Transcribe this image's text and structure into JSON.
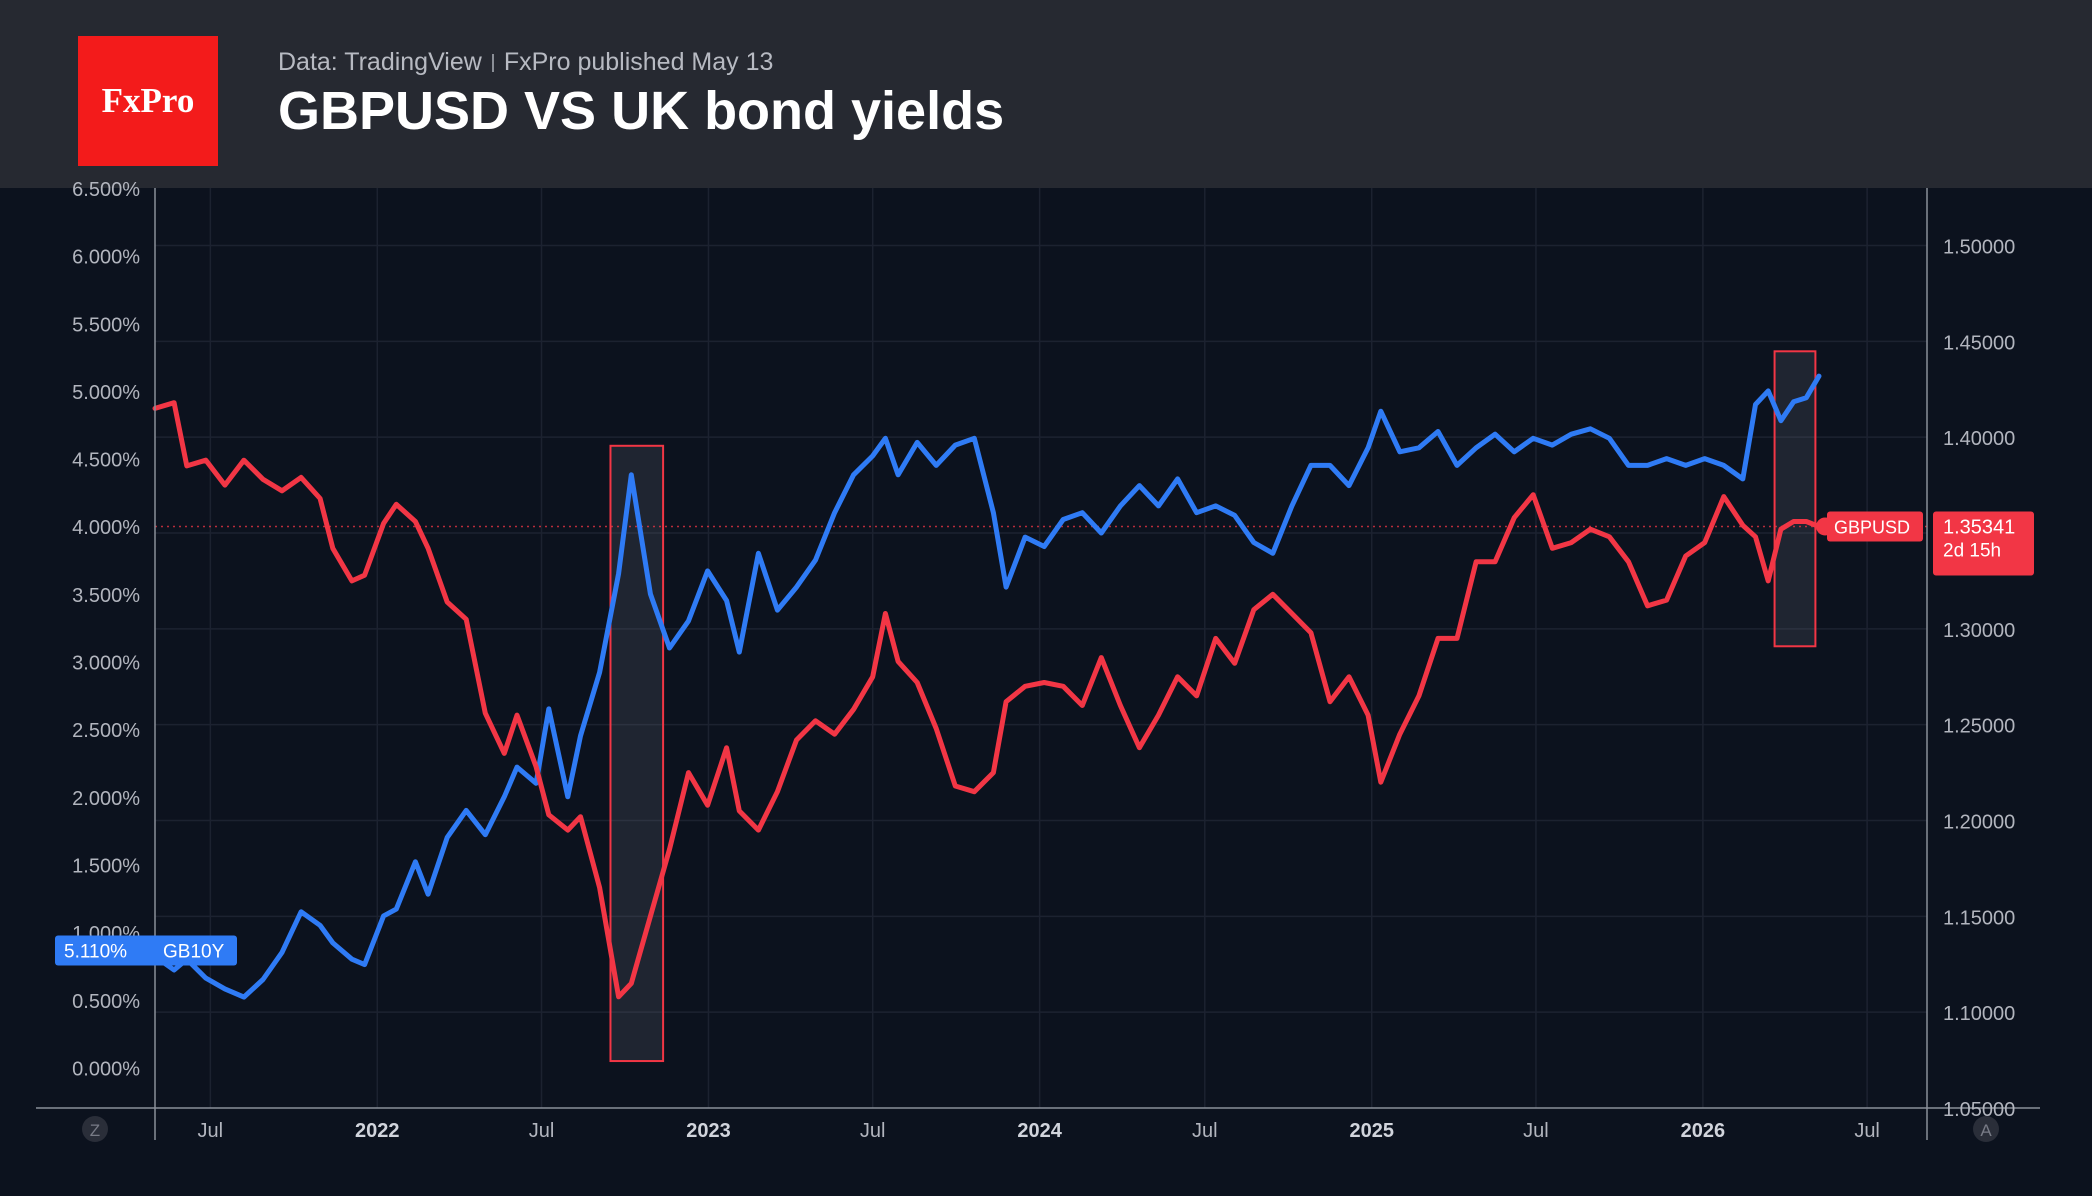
{
  "header": {
    "logo_text": "FxPro",
    "source": "Data: TradingView",
    "published": "FxPro published May 13",
    "title": "GBPUSD VS UK bond yields"
  },
  "colors": {
    "gbpusd": "#f23645",
    "gb10y": "#2f7bf5",
    "header_bg": "#262931",
    "chart_bg": "#0c121e",
    "logo_bg": "#f31b1b"
  },
  "chart_data": {
    "type": "line",
    "title": "GBPUSD VS UK bond yields",
    "x_axis_labels": [
      "Jul",
      "2022",
      "Jul",
      "2023",
      "Jul",
      "2024",
      "Jul",
      "2025",
      "Jul",
      "2026",
      "Jul"
    ],
    "left_axis": {
      "ticks": [
        "6.500%",
        "6.000%",
        "5.500%",
        "5.000%",
        "4.500%",
        "4.000%",
        "3.500%",
        "3.000%",
        "2.500%",
        "2.000%",
        "1.500%",
        "1.000%",
        "0.500%",
        "0.000%"
      ],
      "range": [
        -0.3,
        6.5
      ]
    },
    "right_axis": {
      "ticks": [
        "1.50000",
        "1.45000",
        "1.40000",
        "1.35000",
        "1.30000",
        "1.25000",
        "1.20000",
        "1.15000",
        "1.10000",
        "1.05000"
      ],
      "range": [
        1.05,
        1.53
      ]
    },
    "x_range": [
      "2021-05-01",
      "2026-09-05"
    ],
    "series": [
      {
        "name": "GB10Y",
        "axis": "left",
        "last_value_label": "5.110%",
        "points": [
          [
            "2021-05-01",
            0.82
          ],
          [
            "2021-05-22",
            0.72
          ],
          [
            "2021-06-05",
            0.8
          ],
          [
            "2021-06-26",
            0.66
          ],
          [
            "2021-07-17",
            0.58
          ],
          [
            "2021-08-07",
            0.52
          ],
          [
            "2021-08-28",
            0.65
          ],
          [
            "2021-09-18",
            0.85
          ],
          [
            "2021-10-09",
            1.15
          ],
          [
            "2021-10-30",
            1.05
          ],
          [
            "2021-11-13",
            0.92
          ],
          [
            "2021-12-04",
            0.8
          ],
          [
            "2021-12-18",
            0.76
          ],
          [
            "2022-01-08",
            1.12
          ],
          [
            "2022-01-22",
            1.17
          ],
          [
            "2022-02-12",
            1.52
          ],
          [
            "2022-02-26",
            1.28
          ],
          [
            "2022-03-19",
            1.7
          ],
          [
            "2022-04-09",
            1.9
          ],
          [
            "2022-04-30",
            1.72
          ],
          [
            "2022-05-21",
            2.0
          ],
          [
            "2022-06-04",
            2.22
          ],
          [
            "2022-06-25",
            2.1
          ],
          [
            "2022-07-09",
            2.65
          ],
          [
            "2022-07-30",
            2.0
          ],
          [
            "2022-08-13",
            2.45
          ],
          [
            "2022-09-03",
            2.92
          ],
          [
            "2022-09-24",
            3.65
          ],
          [
            "2022-10-08",
            4.38
          ],
          [
            "2022-10-29",
            3.5
          ],
          [
            "2022-11-19",
            3.1
          ],
          [
            "2022-12-10",
            3.3
          ],
          [
            "2022-12-31",
            3.67
          ],
          [
            "2023-01-21",
            3.45
          ],
          [
            "2023-02-04",
            3.07
          ],
          [
            "2023-02-25",
            3.8
          ],
          [
            "2023-03-18",
            3.38
          ],
          [
            "2023-04-08",
            3.55
          ],
          [
            "2023-04-29",
            3.75
          ],
          [
            "2023-05-20",
            4.1
          ],
          [
            "2023-06-10",
            4.38
          ],
          [
            "2023-07-01",
            4.52
          ],
          [
            "2023-07-15",
            4.65
          ],
          [
            "2023-07-29",
            4.38
          ],
          [
            "2023-08-19",
            4.62
          ],
          [
            "2023-09-09",
            4.45
          ],
          [
            "2023-09-30",
            4.6
          ],
          [
            "2023-10-21",
            4.65
          ],
          [
            "2023-11-11",
            4.1
          ],
          [
            "2023-11-25",
            3.55
          ],
          [
            "2023-12-16",
            3.92
          ],
          [
            "2024-01-06",
            3.85
          ],
          [
            "2024-01-27",
            4.05
          ],
          [
            "2024-02-17",
            4.1
          ],
          [
            "2024-03-09",
            3.95
          ],
          [
            "2024-03-30",
            4.15
          ],
          [
            "2024-04-20",
            4.3
          ],
          [
            "2024-05-11",
            4.15
          ],
          [
            "2024-06-01",
            4.35
          ],
          [
            "2024-06-22",
            4.1
          ],
          [
            "2024-07-13",
            4.15
          ],
          [
            "2024-08-03",
            4.08
          ],
          [
            "2024-08-24",
            3.88
          ],
          [
            "2024-09-14",
            3.8
          ],
          [
            "2024-10-05",
            4.15
          ],
          [
            "2024-10-26",
            4.45
          ],
          [
            "2024-11-16",
            4.45
          ],
          [
            "2024-12-07",
            4.3
          ],
          [
            "2024-12-28",
            4.58
          ],
          [
            "2025-01-11",
            4.85
          ],
          [
            "2025-02-01",
            4.55
          ],
          [
            "2025-02-22",
            4.58
          ],
          [
            "2025-03-15",
            4.7
          ],
          [
            "2025-04-05",
            4.45
          ],
          [
            "2025-04-26",
            4.58
          ],
          [
            "2025-05-17",
            4.68
          ],
          [
            "2025-06-07",
            4.55
          ],
          [
            "2025-06-28",
            4.65
          ],
          [
            "2025-07-19",
            4.6
          ],
          [
            "2025-08-09",
            4.68
          ],
          [
            "2025-08-30",
            4.72
          ],
          [
            "2025-09-20",
            4.65
          ],
          [
            "2025-10-11",
            4.45
          ],
          [
            "2025-11-01",
            4.45
          ],
          [
            "2025-11-22",
            4.5
          ],
          [
            "2025-12-13",
            4.45
          ],
          [
            "2026-01-03",
            4.5
          ],
          [
            "2026-01-24",
            4.45
          ],
          [
            "2026-02-14",
            4.35
          ],
          [
            "2026-02-28",
            4.9
          ],
          [
            "2026-03-14",
            5.0
          ],
          [
            "2026-03-28",
            4.78
          ],
          [
            "2026-04-11",
            4.92
          ],
          [
            "2026-04-25",
            4.95
          ],
          [
            "2026-05-09",
            5.11
          ]
        ]
      },
      {
        "name": "GBPUSD",
        "axis": "right",
        "last_value_label": "1.35341",
        "countdown": "2d 15h",
        "points": [
          [
            "2021-05-01",
            1.415
          ],
          [
            "2021-05-22",
            1.418
          ],
          [
            "2021-06-05",
            1.385
          ],
          [
            "2021-06-26",
            1.388
          ],
          [
            "2021-07-17",
            1.375
          ],
          [
            "2021-08-07",
            1.388
          ],
          [
            "2021-08-28",
            1.378
          ],
          [
            "2021-09-18",
            1.372
          ],
          [
            "2021-10-09",
            1.379
          ],
          [
            "2021-10-30",
            1.368
          ],
          [
            "2021-11-13",
            1.342
          ],
          [
            "2021-12-04",
            1.325
          ],
          [
            "2021-12-18",
            1.328
          ],
          [
            "2022-01-08",
            1.355
          ],
          [
            "2022-01-22",
            1.365
          ],
          [
            "2022-02-12",
            1.356
          ],
          [
            "2022-02-26",
            1.342
          ],
          [
            "2022-03-19",
            1.314
          ],
          [
            "2022-04-09",
            1.305
          ],
          [
            "2022-04-30",
            1.256
          ],
          [
            "2022-05-21",
            1.235
          ],
          [
            "2022-06-04",
            1.255
          ],
          [
            "2022-06-25",
            1.228
          ],
          [
            "2022-07-09",
            1.203
          ],
          [
            "2022-07-30",
            1.195
          ],
          [
            "2022-08-13",
            1.202
          ],
          [
            "2022-09-03",
            1.165
          ],
          [
            "2022-09-24",
            1.108
          ],
          [
            "2022-10-08",
            1.115
          ],
          [
            "2022-10-29",
            1.15
          ],
          [
            "2022-11-19",
            1.185
          ],
          [
            "2022-12-10",
            1.225
          ],
          [
            "2022-12-31",
            1.208
          ],
          [
            "2023-01-21",
            1.238
          ],
          [
            "2023-02-04",
            1.205
          ],
          [
            "2023-02-25",
            1.195
          ],
          [
            "2023-03-18",
            1.215
          ],
          [
            "2023-04-08",
            1.242
          ],
          [
            "2023-04-29",
            1.252
          ],
          [
            "2023-05-20",
            1.245
          ],
          [
            "2023-06-10",
            1.258
          ],
          [
            "2023-07-01",
            1.275
          ],
          [
            "2023-07-15",
            1.308
          ],
          [
            "2023-07-29",
            1.283
          ],
          [
            "2023-08-19",
            1.272
          ],
          [
            "2023-09-09",
            1.248
          ],
          [
            "2023-09-30",
            1.218
          ],
          [
            "2023-10-21",
            1.215
          ],
          [
            "2023-11-11",
            1.225
          ],
          [
            "2023-11-25",
            1.262
          ],
          [
            "2023-12-16",
            1.27
          ],
          [
            "2024-01-06",
            1.272
          ],
          [
            "2024-01-27",
            1.27
          ],
          [
            "2024-02-17",
            1.26
          ],
          [
            "2024-03-09",
            1.285
          ],
          [
            "2024-03-30",
            1.26
          ],
          [
            "2024-04-20",
            1.238
          ],
          [
            "2024-05-11",
            1.255
          ],
          [
            "2024-06-01",
            1.275
          ],
          [
            "2024-06-22",
            1.265
          ],
          [
            "2024-07-13",
            1.295
          ],
          [
            "2024-08-03",
            1.282
          ],
          [
            "2024-08-24",
            1.31
          ],
          [
            "2024-09-14",
            1.318
          ],
          [
            "2024-10-05",
            1.308
          ],
          [
            "2024-10-26",
            1.298
          ],
          [
            "2024-11-16",
            1.262
          ],
          [
            "2024-12-07",
            1.275
          ],
          [
            "2024-12-28",
            1.255
          ],
          [
            "2025-01-11",
            1.22
          ],
          [
            "2025-02-01",
            1.245
          ],
          [
            "2025-02-22",
            1.265
          ],
          [
            "2025-03-15",
            1.295
          ],
          [
            "2025-04-05",
            1.295
          ],
          [
            "2025-04-26",
            1.335
          ],
          [
            "2025-05-17",
            1.335
          ],
          [
            "2025-06-07",
            1.358
          ],
          [
            "2025-06-28",
            1.37
          ],
          [
            "2025-07-19",
            1.342
          ],
          [
            "2025-08-09",
            1.345
          ],
          [
            "2025-08-30",
            1.352
          ],
          [
            "2025-09-20",
            1.348
          ],
          [
            "2025-10-11",
            1.335
          ],
          [
            "2025-11-01",
            1.312
          ],
          [
            "2025-11-22",
            1.315
          ],
          [
            "2025-12-13",
            1.338
          ],
          [
            "2026-01-03",
            1.345
          ],
          [
            "2026-01-24",
            1.369
          ],
          [
            "2026-02-14",
            1.354
          ],
          [
            "2026-02-28",
            1.348
          ],
          [
            "2026-03-14",
            1.325
          ],
          [
            "2026-03-28",
            1.352
          ],
          [
            "2026-04-11",
            1.356
          ],
          [
            "2026-04-25",
            1.356
          ],
          [
            "2026-05-09",
            1.3534
          ]
        ]
      }
    ],
    "highlight_boxes": [
      {
        "x_start": "2022-09-15",
        "x_end": "2022-11-12",
        "y_top": 1.3955,
        "y_bottom": 1.0745
      },
      {
        "x_start": "2026-03-21",
        "x_end": "2026-05-05",
        "y_top": 1.4448,
        "y_bottom": 1.2909
      }
    ],
    "price_line_value": 1.35341,
    "grid": true,
    "corner_labels": {
      "left": "Z",
      "right": "A"
    }
  }
}
